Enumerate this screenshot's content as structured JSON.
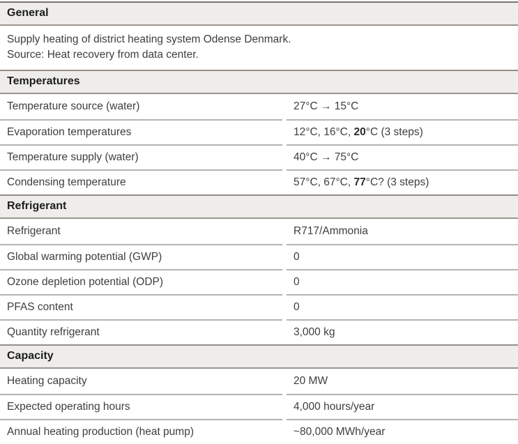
{
  "colors": {
    "header_band_bg": "#eeedec",
    "header_border": "#9b948e",
    "table_top_border": "#7a736c",
    "row_separator": "#b7b2ae",
    "body_text": "#3e3e3d",
    "header_text": "#1d1d1b"
  },
  "sections": {
    "general": {
      "title": "General",
      "description_line1": "Supply heating of district heating system Odense Denmark.",
      "description_line2": "Source: Heat recovery from data center."
    },
    "temperatures": {
      "title": "Temperatures",
      "rows": [
        {
          "label": "Temperature source (water)",
          "value": "27°C → 15°C"
        },
        {
          "label": "Evaporation temperatures",
          "value_prefix": "12°C, 16°C, ",
          "value_bold": "20",
          "value_suffix": "°C (3 steps)"
        },
        {
          "label": "Temperature supply (water)",
          "value": "40°C → 75°C"
        },
        {
          "label": "Condensing temperature",
          "value_prefix": "57°C, 67°C, ",
          "value_bold": "77",
          "value_suffix": "°C? (3 steps)"
        }
      ]
    },
    "refrigerant": {
      "title": "Refrigerant",
      "rows": [
        {
          "label": "Refrigerant",
          "value": "R717/Ammonia"
        },
        {
          "label": "Global warming potential (GWP)",
          "value": "0"
        },
        {
          "label": "Ozone depletion potential (ODP)",
          "value": "0"
        },
        {
          "label": "PFAS content",
          "value": "0"
        },
        {
          "label": "Quantity refrigerant",
          "value": "3,000 kg"
        }
      ]
    },
    "capacity": {
      "title": "Capacity",
      "rows": [
        {
          "label": "Heating capacity",
          "value": "20 MW"
        },
        {
          "label": "Expected operating hours",
          "value": "4,000 hours/year"
        },
        {
          "label": "Annual heating production (heat pump)",
          "value": "~80,000 MWh/year"
        }
      ]
    }
  }
}
